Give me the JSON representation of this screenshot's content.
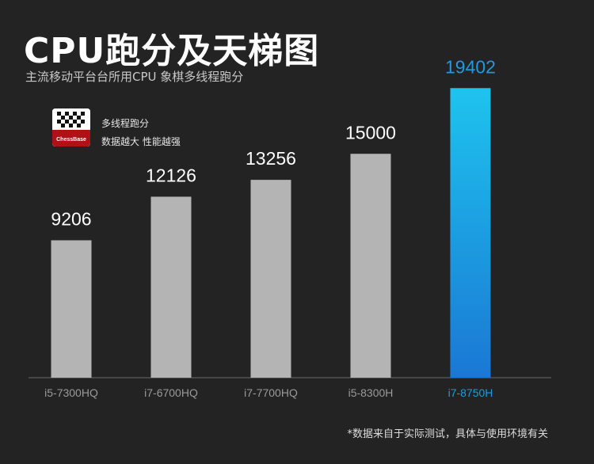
{
  "chart_data": {
    "type": "bar",
    "title": "CPU跑分及天梯图",
    "subtitle": "主流移动平台台所用CPU 象棋多线程跑分",
    "categories": [
      "i5-7300HQ",
      "i7-6700HQ",
      "i7-7700HQ",
      "i5-8300H",
      "i7-8750H"
    ],
    "values": [
      9206,
      12126,
      13256,
      15000,
      19402
    ],
    "ylim": [
      0,
      20000
    ],
    "highlight_index": 4,
    "colors": {
      "bar": "#b4b4b4",
      "highlight_top": "#1fc3ee",
      "highlight_bottom": "#1a78d4",
      "value_label": "#ffffff",
      "highlight_label": "#1e9be0",
      "category_label": "#9a9a9a",
      "axis": "#6a6a6a"
    },
    "legend": {
      "logo_text": "ChessBase",
      "line1": "多线程跑分",
      "line2": "数据越大 性能越强"
    }
  },
  "footnote": "*数据来自于实际测试，具体与使用环境有关"
}
